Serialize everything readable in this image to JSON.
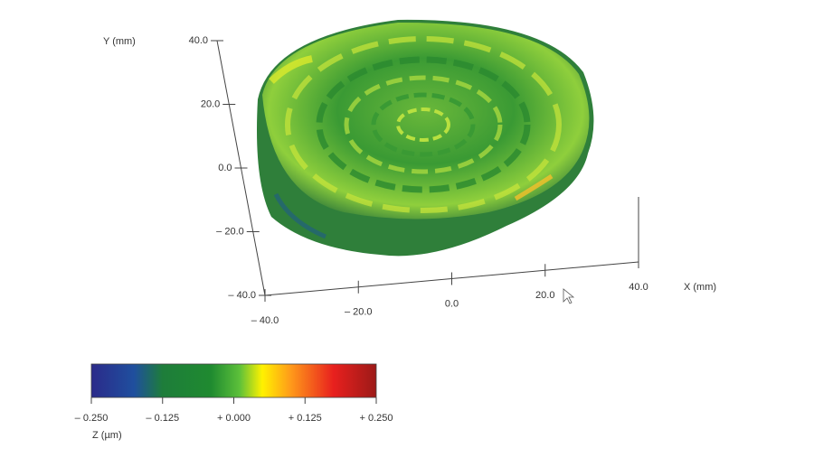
{
  "chart_data": {
    "type": "surface3d",
    "x_label": "X (mm)",
    "y_label": "Y (mm)",
    "xlim": [
      -40,
      40
    ],
    "xticks": [
      {
        "value": -40,
        "label": "– 40.0"
      },
      {
        "value": -20,
        "label": "– 20.0"
      },
      {
        "value": 0,
        "label": "0.0"
      },
      {
        "value": 20,
        "label": "20.0"
      },
      {
        "value": 40,
        "label": "40.0"
      }
    ],
    "ylim": [
      -40,
      40
    ],
    "yticks": [
      {
        "value": -40,
        "label": "– 40.0"
      },
      {
        "value": -20,
        "label": "– 20.0"
      },
      {
        "value": 0,
        "label": "0.0"
      },
      {
        "value": 20,
        "label": "20.0"
      },
      {
        "value": 40,
        "label": "40.0"
      }
    ],
    "colorbar": {
      "label": "Z (µm)",
      "lim": [
        -0.25,
        0.25
      ],
      "ticks": [
        {
          "value": -0.25,
          "label": "– 0.250"
        },
        {
          "value": -0.125,
          "label": "– 0.125"
        },
        {
          "value": 0,
          "label": "+ 0.000"
        },
        {
          "value": 0.125,
          "label": "+ 0.125"
        },
        {
          "value": 0.25,
          "label": "+ 0.250"
        }
      ]
    }
  }
}
